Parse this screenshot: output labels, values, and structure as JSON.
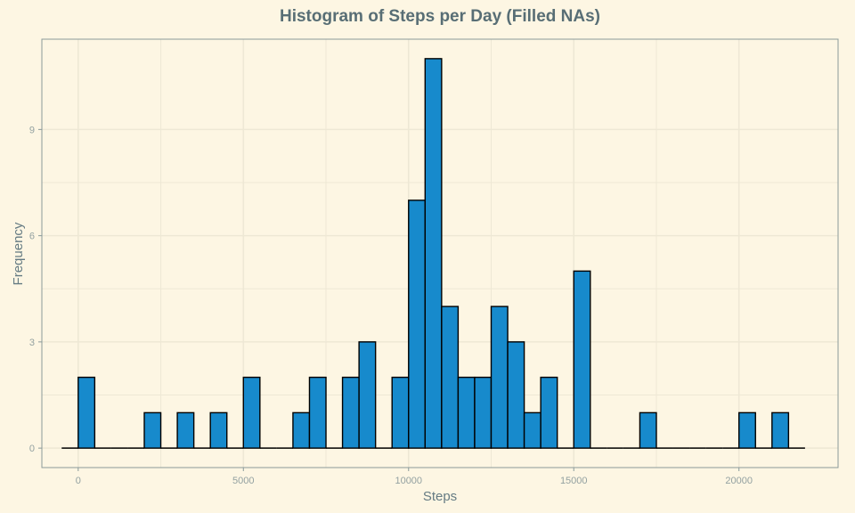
{
  "chart_data": {
    "type": "bar",
    "title": "Histogram of Steps per Day (Filled NAs)",
    "xlabel": "Steps",
    "ylabel": "Frequency",
    "xlim": [
      -1100,
      23000
    ],
    "ylim": [
      -0.55,
      11.55
    ],
    "x_ticks": [
      0,
      5000,
      10000,
      15000,
      20000
    ],
    "y_ticks": [
      0,
      3,
      6,
      9
    ],
    "bin_width": 500,
    "bins_start": -500,
    "counts": [
      0,
      2,
      0,
      0,
      0,
      1,
      0,
      1,
      0,
      1,
      0,
      2,
      0,
      0,
      1,
      2,
      0,
      2,
      3,
      0,
      2,
      7,
      11,
      4,
      2,
      2,
      4,
      3,
      1,
      2,
      0,
      5,
      0,
      0,
      0,
      1,
      0,
      0,
      0,
      0,
      0,
      1,
      0,
      1,
      0
    ],
    "grid": true,
    "bar_fill": "#178acc",
    "bar_stroke": "#000000",
    "background": "#fdf6e3",
    "grid_color": "#eee8d5"
  }
}
